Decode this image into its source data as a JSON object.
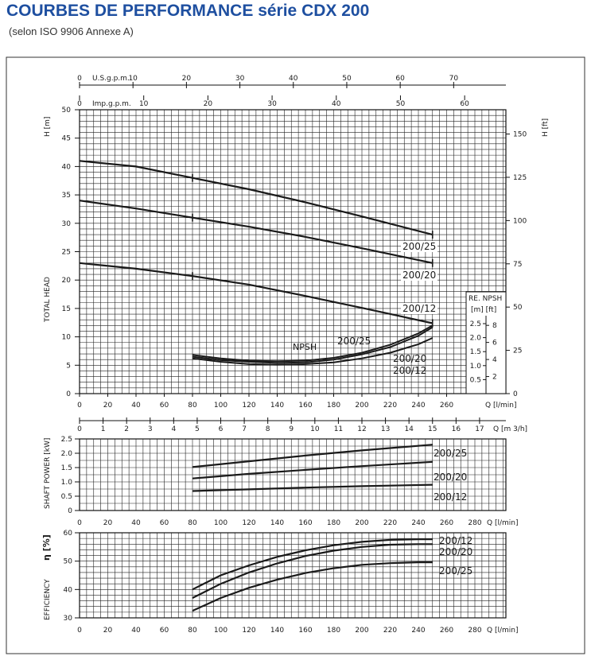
{
  "title": "COURBES DE PERFORMANCE série CDX 200",
  "subtitle": "(selon ISO 9906 Annexe A)",
  "colors": {
    "title": "#1e4fa0",
    "ink": "#1a1a1a",
    "grid": "#1a1a1a",
    "background": "#ffffff"
  },
  "chart_data": [
    {
      "type": "line",
      "panel": "head",
      "ylabel": "TOTAL HEAD",
      "yunit_left": "H [m]",
      "yunit_right": "H [ft]",
      "xunit": "Q [l/min]",
      "xlim": [
        0,
        300
      ],
      "ylim": [
        0,
        50
      ],
      "x_ticks": [
        "0",
        "20",
        "40",
        "60",
        "80",
        "100",
        "120",
        "140",
        "160",
        "180",
        "200",
        "220",
        "240",
        "260"
      ],
      "y_ticks": [
        "0",
        "5",
        "10",
        "15",
        "20",
        "25",
        "30",
        "35",
        "40",
        "45",
        "50"
      ],
      "ft_ticks": [
        "0",
        "25",
        "50",
        "75",
        "100",
        "125",
        "150"
      ],
      "grid": true,
      "top_axes": [
        {
          "label": "U.S.g.p.m.",
          "ticks": [
            "0",
            "10",
            "20",
            "30",
            "40",
            "50",
            "60",
            "70"
          ]
        },
        {
          "label": "Imp.g.p.m.",
          "ticks": [
            "0",
            "10",
            "20",
            "30",
            "40",
            "50",
            "60"
          ]
        }
      ],
      "bottom_axis2": {
        "unit": "Q [m 3/h]",
        "ticks": [
          "0",
          "1",
          "2",
          "3",
          "4",
          "5",
          "6",
          "7",
          "8",
          "9",
          "10",
          "11",
          "12",
          "13",
          "14",
          "15",
          "16",
          "17"
        ]
      },
      "series": [
        {
          "name": "200/25",
          "x": [
            0,
            40,
            80,
            120,
            160,
            200,
            250
          ],
          "y": [
            41,
            40,
            38,
            36,
            33.7,
            31.2,
            28
          ]
        },
        {
          "name": "200/20",
          "x": [
            0,
            40,
            80,
            120,
            160,
            200,
            250
          ],
          "y": [
            34,
            32.6,
            31,
            29.4,
            27.6,
            25.6,
            23
          ]
        },
        {
          "name": "200/12",
          "x": [
            0,
            40,
            80,
            120,
            160,
            200,
            250
          ],
          "y": [
            23,
            22,
            20.7,
            19.2,
            17.2,
            15.1,
            12.4
          ]
        }
      ],
      "npsh": {
        "label": "NPSH",
        "title": "RE. NPSH",
        "units": "[m] [ft]",
        "m_ticks": [
          "0.5",
          "1.0",
          "1.5",
          "2.0",
          "2.5"
        ],
        "ft_ticks": [
          "2",
          "4",
          "6",
          "8"
        ],
        "series": [
          {
            "name": "200/25",
            "x": [
              80,
              100,
              120,
              140,
              160,
              180,
              200,
              220,
              240,
              250
            ],
            "y": [
              6.8,
              6.2,
              5.8,
              5.7,
              5.8,
              6.3,
              7.2,
              8.6,
              10.6,
              12.0
            ]
          },
          {
            "name": "200/20",
            "x": [
              80,
              100,
              120,
              140,
              160,
              180,
              200,
              220,
              240,
              250
            ],
            "y": [
              6.5,
              5.9,
              5.6,
              5.4,
              5.5,
              6.0,
              6.9,
              8.2,
              10.2,
              11.7
            ]
          },
          {
            "name": "200/12",
            "x": [
              80,
              100,
              120,
              140,
              160,
              180,
              200,
              220,
              240,
              250
            ],
            "y": [
              6.2,
              5.6,
              5.2,
              5.1,
              5.2,
              5.5,
              6.2,
              7.2,
              8.7,
              9.8
            ]
          }
        ]
      }
    },
    {
      "type": "line",
      "panel": "power",
      "ylabel": "SHAFT POWER [kW]",
      "xunit": "Q [l/min]",
      "xlim": [
        0,
        300
      ],
      "ylim": [
        0,
        2.5
      ],
      "x_ticks": [
        "0",
        "20",
        "40",
        "60",
        "80",
        "100",
        "120",
        "140",
        "160",
        "180",
        "200",
        "220",
        "240",
        "260",
        "280"
      ],
      "y_ticks": [
        "0",
        "0.5",
        "1.0",
        "1.5",
        "2.0",
        "2.5"
      ],
      "grid": true,
      "series": [
        {
          "name": "200/25",
          "x": [
            80,
            120,
            160,
            200,
            250
          ],
          "y": [
            1.52,
            1.72,
            1.92,
            2.1,
            2.3
          ]
        },
        {
          "name": "200/20",
          "x": [
            80,
            120,
            160,
            200,
            250
          ],
          "y": [
            1.12,
            1.28,
            1.42,
            1.55,
            1.7
          ]
        },
        {
          "name": "200/12",
          "x": [
            80,
            120,
            160,
            200,
            250
          ],
          "y": [
            0.68,
            0.74,
            0.8,
            0.85,
            0.9
          ]
        }
      ]
    },
    {
      "type": "line",
      "panel": "efficiency",
      "ylabel": "EFFICIENCY",
      "yunit": "η [%]",
      "xunit": "Q [l/min]",
      "xlim": [
        0,
        300
      ],
      "ylim": [
        30,
        60
      ],
      "x_ticks": [
        "0",
        "20",
        "40",
        "60",
        "80",
        "100",
        "120",
        "140",
        "160",
        "180",
        "200",
        "220",
        "240",
        "260",
        "280"
      ],
      "y_ticks": [
        "30",
        "40",
        "50",
        "60"
      ],
      "grid": true,
      "series": [
        {
          "name": "200/12",
          "x": [
            80,
            100,
            120,
            140,
            160,
            180,
            200,
            220,
            240,
            250
          ],
          "y": [
            40,
            45,
            48.5,
            51.5,
            53.8,
            55.6,
            56.8,
            57.5,
            57.7,
            57.7
          ]
        },
        {
          "name": "200/20",
          "x": [
            80,
            100,
            120,
            140,
            160,
            180,
            200,
            220,
            240,
            250
          ],
          "y": [
            37,
            42,
            46,
            49.2,
            51.8,
            53.7,
            55,
            55.8,
            56,
            56
          ]
        },
        {
          "name": "200/25",
          "x": [
            80,
            100,
            120,
            140,
            160,
            180,
            200,
            220,
            240,
            250
          ],
          "y": [
            32.5,
            37,
            40.6,
            43.5,
            45.8,
            47.5,
            48.7,
            49.3,
            49.6,
            49.6
          ]
        }
      ]
    }
  ]
}
